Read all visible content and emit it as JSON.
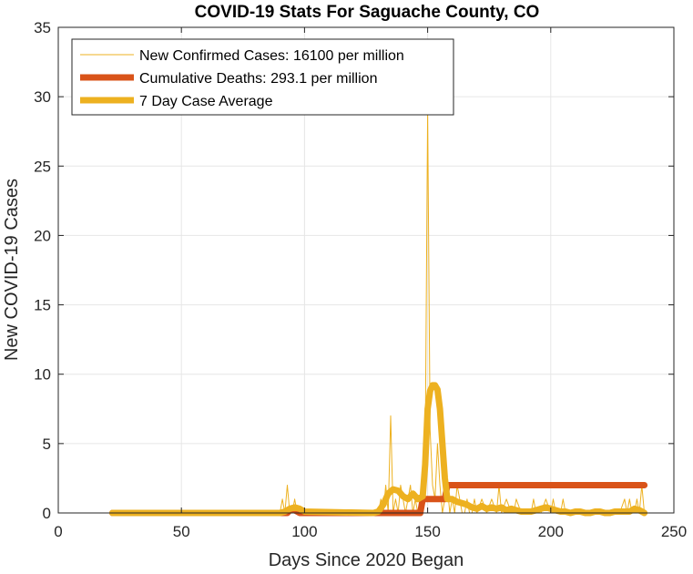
{
  "chart_data": {
    "type": "line",
    "title": "COVID-19 Stats For Saguache County, CO",
    "xlabel": "Days Since 2020 Began",
    "ylabel": "New COVID-19 Cases",
    "xlim": [
      0,
      250
    ],
    "ylim": [
      0,
      35
    ],
    "xticks": [
      0,
      50,
      100,
      150,
      200,
      250
    ],
    "yticks": [
      0,
      5,
      10,
      15,
      20,
      25,
      30,
      35
    ],
    "grid": true,
    "legend_position": "top-left",
    "series": [
      {
        "name": "New Confirmed Cases: 16100 per million",
        "color": "#EDB120",
        "style": "thin",
        "x": [
          22,
          80,
          90,
          91,
          92,
          93,
          94,
          95,
          96,
          97,
          98,
          100,
          128,
          130,
          131,
          132,
          133,
          134,
          135,
          136,
          137,
          138,
          139,
          140,
          141,
          142,
          143,
          144,
          145,
          146,
          147,
          148,
          149,
          150,
          151,
          152,
          153,
          154,
          155,
          156,
          157,
          158,
          159,
          160,
          161,
          162,
          163,
          164,
          165,
          166,
          167,
          168,
          169,
          170,
          172,
          174,
          176,
          178,
          179,
          180,
          182,
          184,
          185,
          186,
          188,
          190,
          192,
          193,
          194,
          196,
          198,
          200,
          201,
          202,
          204,
          205,
          206,
          208,
          210,
          215,
          220,
          225,
          228,
          230,
          231,
          232,
          233,
          234,
          235,
          236,
          237,
          238
        ],
        "y": [
          0,
          0,
          0,
          1,
          0,
          2,
          0,
          0,
          1,
          0,
          0,
          0,
          0,
          0,
          1,
          0,
          2,
          0,
          7,
          0,
          1,
          0,
          2,
          1,
          0,
          1,
          2,
          0,
          1,
          0,
          1,
          0,
          4,
          29,
          6,
          2,
          1,
          5,
          2,
          0,
          1,
          2,
          0,
          1,
          0,
          2,
          1,
          0,
          0,
          1,
          0,
          0,
          1,
          0,
          1,
          0,
          1,
          0,
          2,
          0,
          1,
          0,
          0,
          1,
          0,
          0,
          0,
          1,
          0,
          0,
          1,
          0,
          1,
          0,
          0,
          1,
          0,
          0,
          0,
          0,
          0,
          0,
          0,
          1,
          0,
          1,
          0,
          0,
          1,
          0,
          2,
          0
        ]
      },
      {
        "name": "Cumulative Deaths: 293.1 per million",
        "color": "#D95319",
        "style": "thick",
        "x": [
          22,
          93,
          94,
          95,
          96,
          97,
          98,
          99,
          130,
          147,
          148,
          157,
          158,
          238
        ],
        "y": [
          0,
          0,
          0.2,
          0.3,
          0.2,
          0.1,
          0,
          0,
          0,
          0,
          1,
          1,
          2,
          2
        ]
      },
      {
        "name": "7 Day Case Average",
        "color": "#EDB120",
        "style": "thick",
        "x": [
          22,
          90,
          92,
          94,
          96,
          98,
          100,
          128,
          130,
          132,
          134,
          136,
          138,
          140,
          142,
          144,
          146,
          148,
          149,
          150,
          151,
          152,
          153,
          154,
          155,
          156,
          157,
          158,
          160,
          162,
          164,
          166,
          168,
          170,
          172,
          174,
          176,
          178,
          180,
          182,
          184,
          186,
          188,
          190,
          192,
          194,
          196,
          198,
          200,
          202,
          204,
          206,
          208,
          210,
          212,
          214,
          216,
          218,
          220,
          222,
          224,
          226,
          228,
          230,
          232,
          234,
          236,
          238
        ],
        "y": [
          0,
          0,
          0.1,
          0.3,
          0.4,
          0.3,
          0.1,
          0,
          0.1,
          0.6,
          1.4,
          1.7,
          1.6,
          1.2,
          1.0,
          1.4,
          1.0,
          1.2,
          3.5,
          7.5,
          8.8,
          9.2,
          9.2,
          8.9,
          7.5,
          5.0,
          2.5,
          1.0,
          1.0,
          0.8,
          0.7,
          0.6,
          0.4,
          0.3,
          0.5,
          0.3,
          0.4,
          0.3,
          0.4,
          0.2,
          0.3,
          0.2,
          0.1,
          0.1,
          0.1,
          0.2,
          0.3,
          0.4,
          0.3,
          0.2,
          0.1,
          0.1,
          0.0,
          0.1,
          0.1,
          0.0,
          0.0,
          0.1,
          0.1,
          0.0,
          0.0,
          0.1,
          0.1,
          0.1,
          0.1,
          0.3,
          0.2,
          0.0
        ]
      }
    ]
  }
}
